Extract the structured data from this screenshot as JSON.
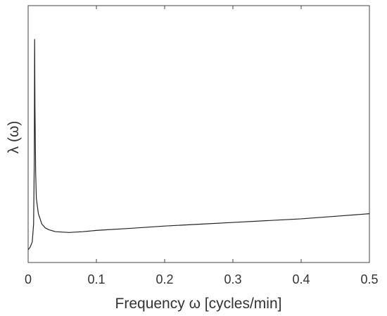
{
  "chart_data": {
    "type": "line",
    "x_label": "Frequency ω [cycles/min]",
    "y_label": "λ (ω)",
    "x": [
      0,
      0.003,
      0.006,
      0.008,
      0.009,
      0.0095,
      0.01,
      0.011,
      0.012,
      0.015,
      0.02,
      0.025,
      0.03,
      0.04,
      0.06,
      0.08,
      0.1,
      0.15,
      0.2,
      0.25,
      0.3,
      0.35,
      0.4,
      0.45,
      0.5
    ],
    "series": [
      {
        "color": "#222222",
        "values": [
          0.05,
          0.06,
          0.08,
          0.15,
          0.4,
          0.87,
          0.6,
          0.35,
          0.25,
          0.19,
          0.15,
          0.135,
          0.128,
          0.12,
          0.117,
          0.12,
          0.125,
          0.133,
          0.142,
          0.149,
          0.156,
          0.163,
          0.17,
          0.18,
          0.19
        ]
      }
    ],
    "xlim": [
      0,
      0.5
    ],
    "xticks": [
      0,
      0.1,
      0.2,
      0.3,
      0.4,
      0.5
    ],
    "ylim": [
      0,
      1
    ]
  }
}
